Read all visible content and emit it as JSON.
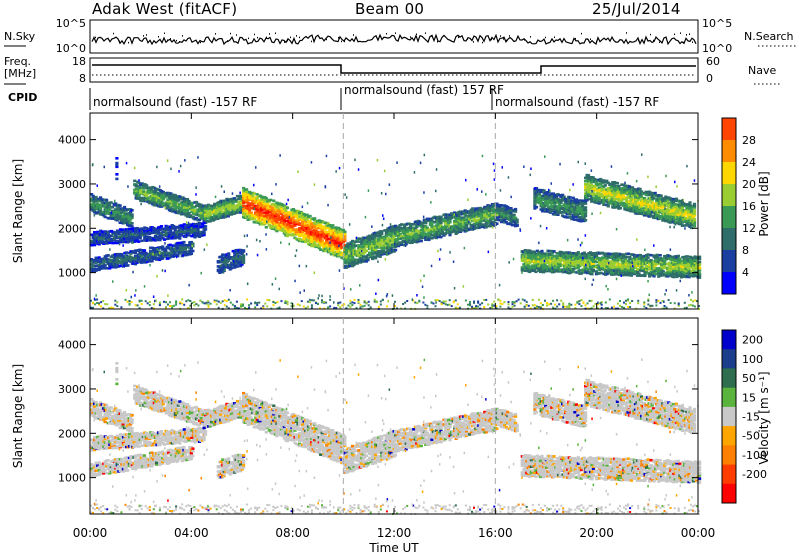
{
  "header": {
    "station": "Adak West (fitACF)",
    "beam": "Beam 00",
    "date": "25/Jul/2014"
  },
  "side_labels": {
    "nsky": "N.Sky",
    "nsearch": "N.Search",
    "freq_line1": "Freq.",
    "freq_line2": "[MHz]",
    "nave": "Nave",
    "cpid": "CPID"
  },
  "noise_panel": {
    "left_ticks": [
      "10^5",
      "10^0"
    ],
    "right_ticks": [
      "10^5",
      "10^0"
    ]
  },
  "freq_panel": {
    "left_ticks": [
      "18",
      "8"
    ],
    "right_ticks": [
      "60",
      "0"
    ]
  },
  "cpid_panel": {
    "labels": [
      "normalsound (fast) -157 RF",
      "normalsound (fast) 157 RF",
      "normalsound (fast) -157 RF"
    ]
  },
  "colors": {
    "power": [
      "#0000ff",
      "#1a3fa0",
      "#2e6d6a",
      "#3a9a55",
      "#9acd32",
      "#ffd700",
      "#ff8c00",
      "#ff4500",
      "#ff0000"
    ],
    "velocity": [
      "#0000cc",
      "#1c3c8c",
      "#2e6e4e",
      "#5ab33c",
      "#c8c8c8",
      "#ffa500",
      "#ff7f00",
      "#ff3c00",
      "#ff0000"
    ]
  },
  "chart_data": [
    {
      "type": "heatmap",
      "panel": "power",
      "title": "",
      "xlabel": "Time UT",
      "ylabel": "Slant Range [km]",
      "xlim": [
        0,
        24
      ],
      "ylim": [
        180,
        4600
      ],
      "x_tick_labels": [
        "00:00",
        "04:00",
        "08:00",
        "12:00",
        "16:00",
        "20:00",
        "00:00"
      ],
      "y_tick_labels": [
        "1000",
        "2000",
        "3000",
        "4000"
      ],
      "colorbar": {
        "label": "Power [dB]",
        "ticks": [
          "4",
          "8",
          "12",
          "16",
          "20",
          "24",
          "28"
        ]
      },
      "scatter_bands": [
        {
          "t0": 0.0,
          "r0": 2600,
          "t1": 1.6,
          "r1": 2250,
          "w": 180,
          "v": 10
        },
        {
          "t0": 1.7,
          "r0": 2900,
          "t1": 4.5,
          "r1": 2350,
          "w": 200,
          "v": 12
        },
        {
          "t0": 4.5,
          "r0": 2350,
          "t1": 6.0,
          "r1": 2600,
          "w": 160,
          "v": 14
        },
        {
          "t0": 6.0,
          "r0": 2600,
          "t1": 10.0,
          "r1": 1650,
          "w": 320,
          "v": 24
        },
        {
          "t0": 10.0,
          "r0": 1400,
          "t1": 12.0,
          "r1": 1800,
          "w": 260,
          "v": 13
        },
        {
          "t0": 12.0,
          "r0": 1850,
          "t1": 16.0,
          "r1": 2350,
          "w": 220,
          "v": 12
        },
        {
          "t0": 16.0,
          "r0": 2400,
          "t1": 16.8,
          "r1": 2250,
          "w": 160,
          "v": 9
        },
        {
          "t0": 17.5,
          "r0": 2700,
          "t1": 19.5,
          "r1": 2400,
          "w": 240,
          "v": 10
        },
        {
          "t0": 19.5,
          "r0": 2950,
          "t1": 23.8,
          "r1": 2300,
          "w": 250,
          "v": 15
        },
        {
          "t0": 17.0,
          "r0": 1300,
          "t1": 24.0,
          "r1": 1150,
          "w": 230,
          "v": 14
        },
        {
          "t0": 0.0,
          "r0": 1200,
          "t1": 4.0,
          "r1": 1600,
          "w": 150,
          "v": 7
        },
        {
          "t0": 0.0,
          "r0": 1800,
          "t1": 4.5,
          "r1": 2000,
          "w": 130,
          "v": 6
        },
        {
          "t0": 5.0,
          "r0": 1200,
          "t1": 6.0,
          "r1": 1400,
          "w": 170,
          "v": 7
        },
        {
          "t0": 1.0,
          "r0": 3200,
          "t1": 1.0,
          "r1": 3500,
          "w": 90,
          "v": 5
        }
      ]
    },
    {
      "type": "heatmap",
      "panel": "velocity",
      "title": "",
      "xlabel": "Time UT",
      "ylabel": "Slant Range [km]",
      "xlim": [
        0,
        24
      ],
      "ylim": [
        180,
        4600
      ],
      "x_tick_labels": [
        "00:00",
        "04:00",
        "08:00",
        "12:00",
        "16:00",
        "20:00",
        "00:00"
      ],
      "y_tick_labels": [
        "1000",
        "2000",
        "3000",
        "4000"
      ],
      "colorbar": {
        "label": "Velocity [m s⁻¹]",
        "ticks": [
          "200",
          "100",
          "50",
          "15",
          "-15",
          "-50",
          "-100",
          "-200"
        ]
      }
    }
  ]
}
